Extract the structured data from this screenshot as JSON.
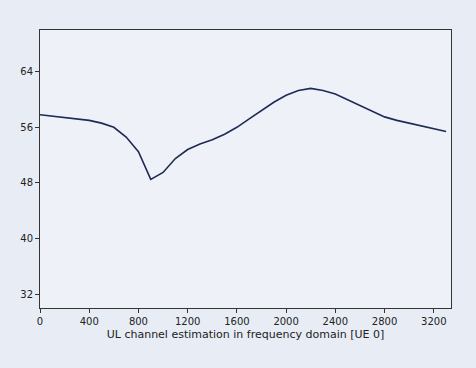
{
  "chart_data": {
    "type": "line",
    "x_label": "UL channel estimation in frequency domain [UE 0]",
    "x": [
      0,
      100,
      200,
      300,
      400,
      500,
      600,
      700,
      800,
      900,
      1000,
      1100,
      1200,
      1300,
      1400,
      1500,
      1600,
      1700,
      1800,
      1900,
      2000,
      2100,
      2200,
      2300,
      2400,
      2500,
      2600,
      2700,
      2800,
      2900,
      3000,
      3100,
      3200,
      3300
    ],
    "values": [
      57.8,
      57.6,
      57.4,
      57.2,
      57.0,
      56.6,
      56.0,
      54.6,
      52.5,
      48.5,
      49.5,
      51.5,
      52.8,
      53.6,
      54.2,
      55.0,
      56.0,
      57.2,
      58.4,
      59.6,
      60.6,
      61.3,
      61.6,
      61.3,
      60.8,
      60.0,
      59.2,
      58.3,
      57.5,
      57.0,
      56.6,
      56.2,
      55.8,
      55.4
    ],
    "color": "#1f2a55",
    "xlim": [
      0,
      3340
    ],
    "xticks": [
      0,
      400,
      800,
      1200,
      1600,
      2000,
      2400,
      2800,
      3200
    ],
    "ylim": [
      30,
      70
    ],
    "yticks": [
      32,
      40,
      48,
      56,
      64
    ],
    "grid": false
  }
}
